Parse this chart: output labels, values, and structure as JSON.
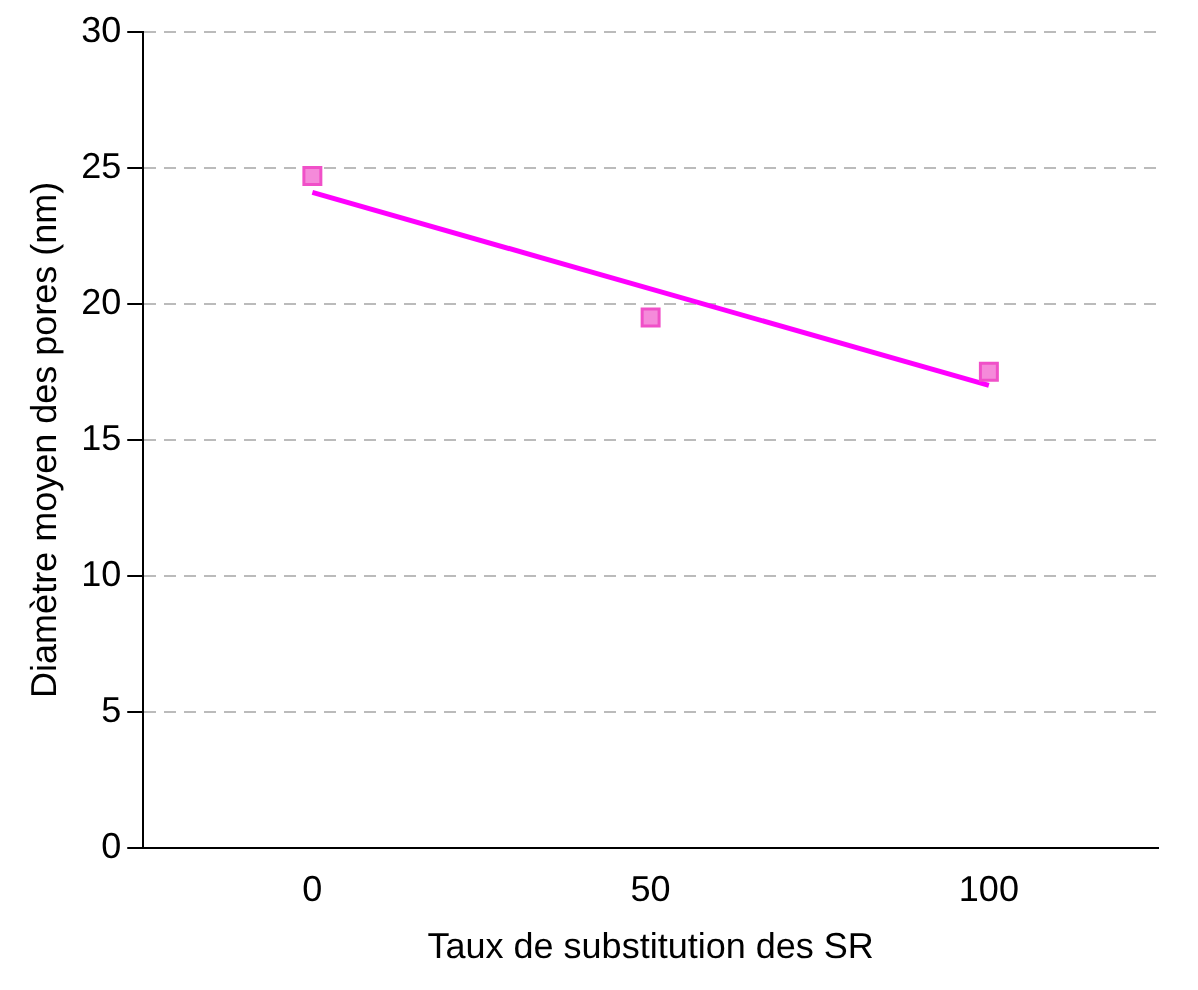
{
  "chart_data": {
    "type": "scatter",
    "xlabel": "Taux de substitution des SR",
    "ylabel": "Diamètre moyen des pores (nm)",
    "series": [
      {
        "color": "#f050c8",
        "x": [
          0,
          50,
          100
        ],
        "values": [
          24.7,
          19.5,
          17.5
        ],
        "marker": "square"
      },
      {
        "type": "line",
        "color": "#ff00ff",
        "x": [
          0,
          100
        ],
        "values": [
          24.1,
          17.0
        ],
        "marker": "none"
      }
    ],
    "xlim": [
      -25,
      125
    ],
    "xticks": [
      0,
      50,
      100
    ],
    "ylim": [
      0,
      30
    ],
    "yticks": [
      0,
      5,
      10,
      15,
      20,
      25,
      30
    ],
    "grid": "y",
    "legend": false,
    "line_style": "solid"
  }
}
